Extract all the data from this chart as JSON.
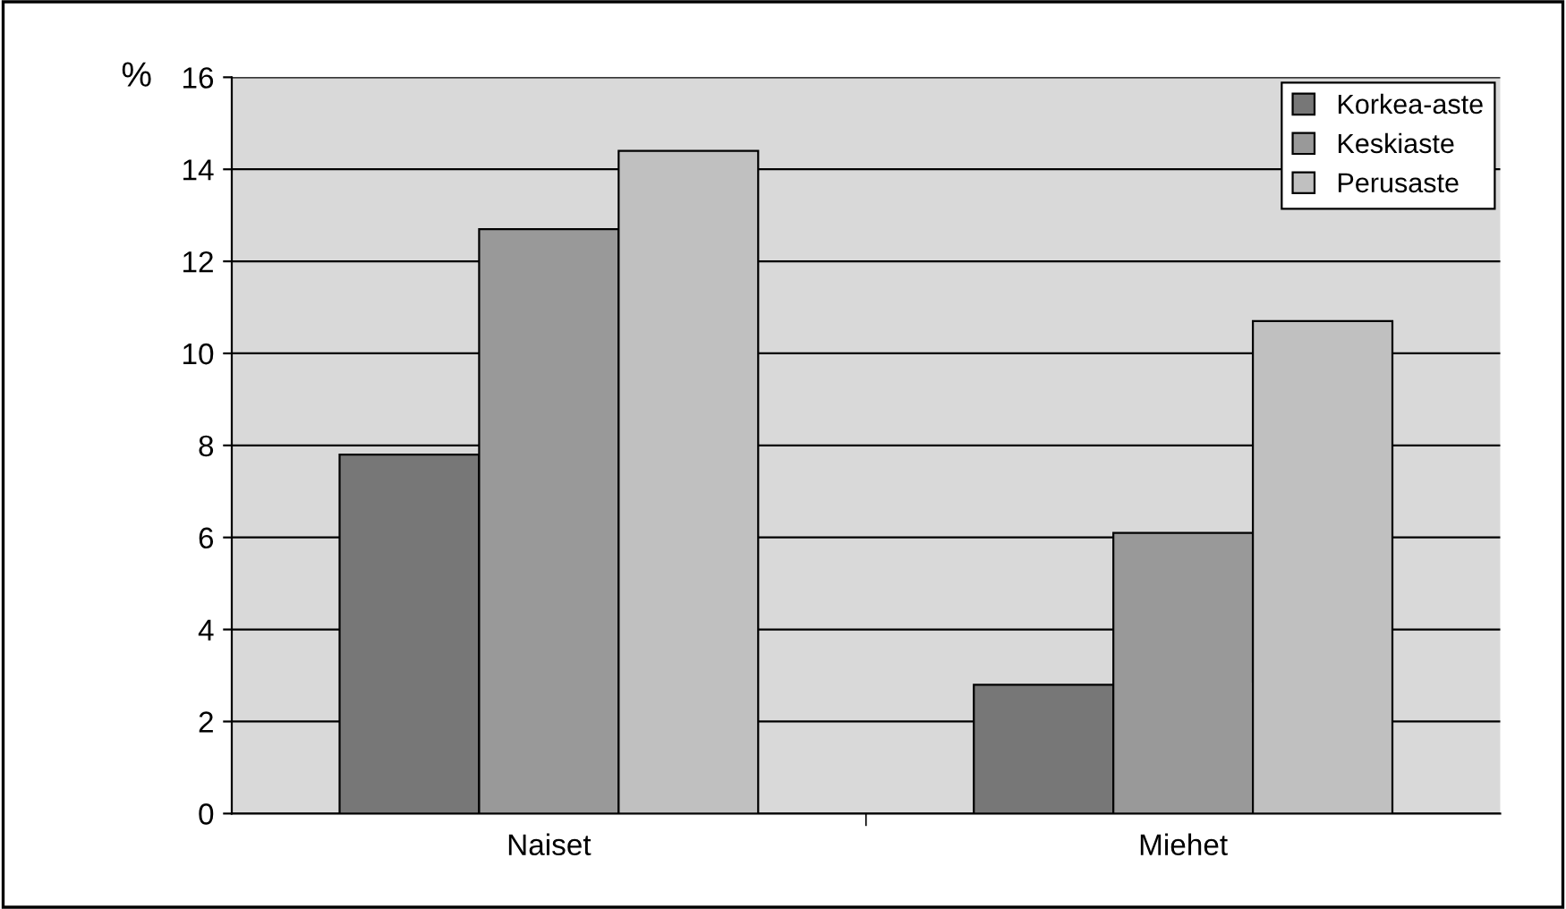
{
  "chart_data": {
    "type": "bar",
    "ylabel": "%",
    "categories": [
      "Naiset",
      "Miehet"
    ],
    "series": [
      {
        "name": "Korkea-aste",
        "color": "#777777",
        "values": [
          7.8,
          2.8
        ]
      },
      {
        "name": "Keskiaste",
        "color": "#999999",
        "values": [
          12.7,
          6.1
        ]
      },
      {
        "name": "Perusaste",
        "color": "#c0c0c0",
        "values": [
          14.4,
          10.7
        ]
      }
    ],
    "ylim": [
      0,
      16
    ],
    "yticks": [
      0,
      2,
      4,
      6,
      8,
      10,
      12,
      14,
      16
    ],
    "grid": "y",
    "legend": "top right"
  }
}
